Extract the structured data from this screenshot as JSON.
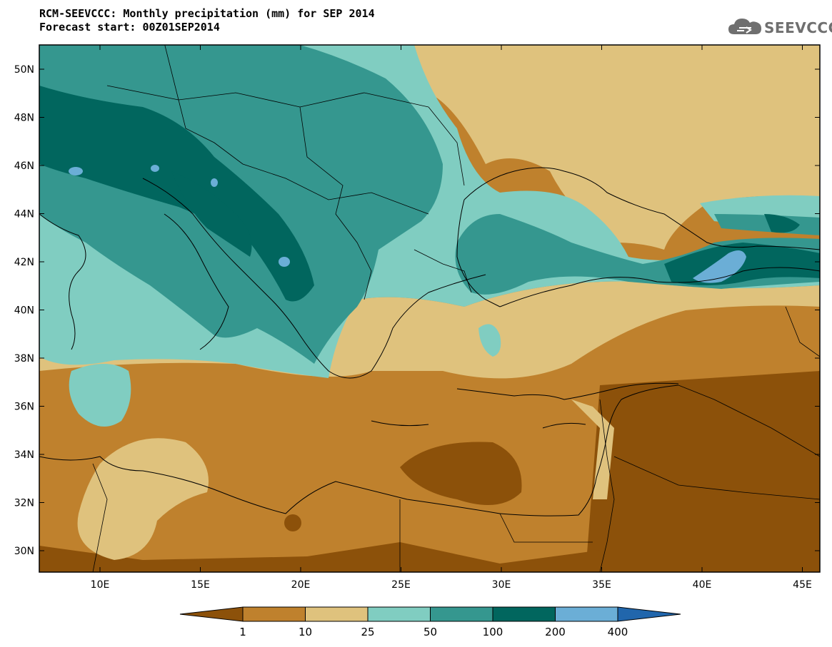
{
  "header": {
    "title": "RCM-SEEVCCC: Monthly precipitation (mm) for SEP 2014",
    "subtitle": "Forecast start: 00Z01SEP2014"
  },
  "logo": {
    "text": "SEEVCCC",
    "icon": "cloud-icon"
  },
  "axes": {
    "lat_ticks": [
      "50N",
      "48N",
      "46N",
      "44N",
      "42N",
      "40N",
      "38N",
      "36N",
      "34N",
      "32N",
      "30N"
    ],
    "lon_ticks": [
      "10E",
      "15E",
      "20E",
      "25E",
      "30E",
      "35E",
      "40E",
      "45E"
    ]
  },
  "colorbar": {
    "labels": [
      "1",
      "10",
      "25",
      "50",
      "100",
      "200",
      "400"
    ],
    "colors": [
      "#8c510a",
      "#bf812d",
      "#dfc27d",
      "#80cdc1",
      "#35978f",
      "#01665e",
      "#6baed6",
      "#2166ac"
    ]
  }
}
